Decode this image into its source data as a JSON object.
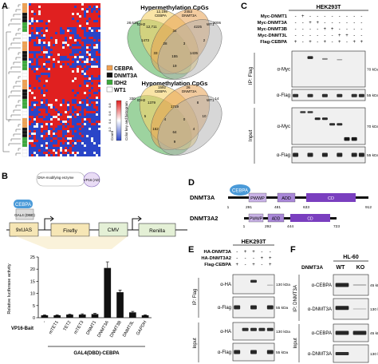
{
  "panels": {
    "A": {
      "letter": "A",
      "legend": [
        {
          "label": "CEBPA",
          "color": "#f0a050"
        },
        {
          "label": "DNMT3A",
          "color": "#111111"
        },
        {
          "label": "IDH2",
          "color": "#3aa93a"
        },
        {
          "label": "WT1",
          "color": "#ffffff"
        }
      ],
      "colorbar_title": "Color key and histogram",
      "colorbar_sub": "Count",
      "colorbar_ticks": [
        "0.2",
        "0.4",
        "0.6",
        "0.8"
      ],
      "venn_hyper": {
        "title": "Hypermethylation CpGs",
        "sets": [
          "IDH2",
          "CEBPA",
          "DNMT3A",
          "WT1"
        ],
        "numbers": [
          "28,619",
          "12,198",
          "2453",
          "3006",
          "12,711",
          "34",
          "4225",
          "1473",
          "28",
          "3",
          "2",
          "33",
          "155",
          "1435",
          "19"
        ]
      },
      "venn_hypo": {
        "title": "Hypomethylation CpGs",
        "sets": [
          "IDH2",
          "CEBPA",
          "DNMT3A",
          "WT1"
        ],
        "numbers": [
          "330",
          "1592",
          "26",
          "14",
          "1379",
          "1719",
          "8",
          "5",
          "4",
          "0",
          "10",
          "162",
          "64",
          "4",
          "9"
        ]
      }
    },
    "B": {
      "letter": "B",
      "construct": {
        "enzyme": "DNA-modifying enzyme",
        "vp16": "VP16 (AD)",
        "cebpa": "CEBPA",
        "gal4": "GAL4 (DBD)",
        "uas": "9xUAS",
        "firefly": "Firefly",
        "cmv": "CMV",
        "renilla": "Renilla"
      },
      "ylabel": "Relative luciferase activity",
      "row_label": "VP16-Bait",
      "group_label": "GAL4(DBD)-CEBPA",
      "sig": "ns",
      "chart_data": {
        "type": "bar",
        "categories": [
          "-",
          "mTET1",
          "TET2",
          "mTET3",
          "DNMT1",
          "DNMT3A",
          "DNMT3B",
          "DNMT3L",
          "GAPDH"
        ],
        "values": [
          1.0,
          1.0,
          1.3,
          1.3,
          1.5,
          20.5,
          10.5,
          2.2,
          1.0
        ],
        "errors": [
          0.2,
          0.2,
          0.2,
          0.3,
          0.3,
          2.5,
          0.9,
          0.4,
          0.2
        ],
        "ylim": [
          0,
          25
        ],
        "yticks": [
          0,
          5,
          10,
          15,
          20,
          25
        ],
        "ylabel": "Relative luciferase activity"
      }
    },
    "C": {
      "letter": "C",
      "cell": "HEK293T",
      "rows": [
        {
          "label": "Myc-DNMT1",
          "marks": [
            "-",
            "+",
            "-",
            "-",
            "-",
            "-",
            "-",
            "-",
            "-",
            "-"
          ]
        },
        {
          "label": "Myc-DNMT3A",
          "marks": [
            "-",
            "-",
            "+",
            "+",
            "-",
            "-",
            "-",
            "-",
            "-",
            "-"
          ]
        },
        {
          "label": "Myc-DNMT3B",
          "marks": [
            "-",
            "-",
            "-",
            "-",
            "+",
            "+",
            "-",
            "-",
            "-",
            "-"
          ]
        },
        {
          "label": "Myc-DNMT3L",
          "marks": [
            "-",
            "-",
            "-",
            "-",
            "-",
            "-",
            "+",
            "+",
            "-",
            "-"
          ]
        },
        {
          "label": "Flag-CEBPA",
          "marks": [
            "+",
            "-",
            "+",
            "-",
            "+",
            "-",
            "+",
            "-",
            "+",
            "+"
          ]
        }
      ],
      "ip": "IP: Flag",
      "input": "Input",
      "blots": [
        "α-Myc",
        "α-Flag",
        "α-Myc",
        "α-Flag"
      ],
      "kda": [
        "70 kDa",
        "55 kDa",
        "70 kDa",
        "55 kDa"
      ]
    },
    "D": {
      "letter": "D",
      "dnmt3a": {
        "name": "DNMT3A",
        "cebpa": "CEBPA",
        "pwwp": "PWWP",
        "add": "ADD",
        "cd": "CD",
        "nums": [
          "1",
          "291",
          "481",
          "633",
          "912"
        ]
      },
      "dnmt3a2": {
        "name": "DNMT3A2",
        "pwwp": "PWWP",
        "add": "ADD",
        "cd": "CD",
        "nums": [
          "1",
          "292",
          "444",
          "723"
        ]
      }
    },
    "E": {
      "letter": "E",
      "cell": "HEK293T",
      "rows": [
        {
          "label": "HA-DNMT3A",
          "marks": [
            "-",
            "+",
            "+",
            "-",
            "-"
          ]
        },
        {
          "label": "HA-DNMT3A2",
          "marks": [
            "-",
            "-",
            "-",
            "+",
            "+"
          ]
        },
        {
          "label": "Flag-CEBPA",
          "marks": [
            "+",
            "-",
            "+",
            "-",
            "+"
          ]
        }
      ],
      "ip": "IP: Flag",
      "input": "Input",
      "blots": [
        "α-HA",
        "α-Flag",
        "α-HA",
        "α-Flag"
      ],
      "kda": [
        "130 kDa",
        "55 kDa",
        "130 kDa",
        "55 kDa"
      ]
    },
    "F": {
      "letter": "F",
      "cell": "HL-60",
      "dnmt3a": "DNMT3A",
      "wt": "WT",
      "ko": "KO",
      "ip": "IP: DNMT3A",
      "input": "Input",
      "blots": [
        "α-CEBPA",
        "α-DNMT3A",
        "α-CEBPA",
        "α-DNMT3A"
      ],
      "kda": [
        "45 kDa",
        "130 kDa",
        "45 kDa",
        "130 kDa"
      ]
    }
  },
  "colors": {
    "cebpa_fill": "#4a9ad8",
    "pwwp": "#c9b2e6",
    "add": "#a987d8",
    "cd": "#7a3fbf",
    "bar": "#111111"
  }
}
